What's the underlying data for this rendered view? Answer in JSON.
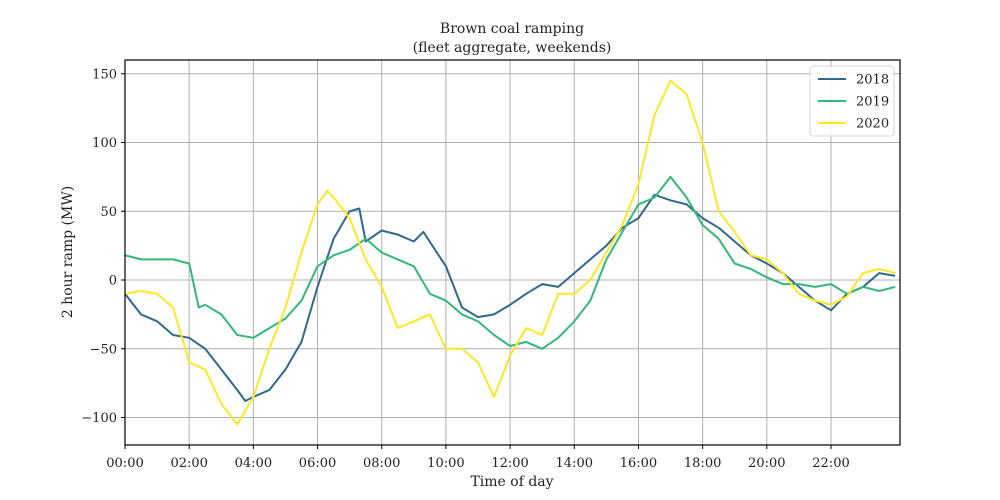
{
  "chart_data": {
    "type": "line",
    "title": "Brown coal ramping",
    "subtitle": "(fleet aggregate, weekends)",
    "xlabel": "Time of day",
    "ylabel": "2 hour ramp (MW)",
    "xlim": [
      0,
      24.15
    ],
    "ylim": [
      -120,
      160
    ],
    "grid": true,
    "legend_position": "top-right",
    "x_tick_labels": [
      "00:00",
      "02:00",
      "04:00",
      "06:00",
      "08:00",
      "10:00",
      "12:00",
      "14:00",
      "16:00",
      "18:00",
      "20:00",
      "22:00"
    ],
    "x_ticks": [
      0,
      2,
      4,
      6,
      8,
      10,
      12,
      14,
      16,
      18,
      20,
      22
    ],
    "y_ticks": [
      -100,
      -50,
      0,
      50,
      100,
      150
    ],
    "y_tick_labels": [
      "−100",
      "−50",
      "0",
      "50",
      "100",
      "150"
    ],
    "x_unit": "hours",
    "series": [
      {
        "name": "2018",
        "color": "#31688e",
        "x": [
          0,
          0.5,
          1,
          1.5,
          2,
          2.5,
          3,
          3.5,
          3.75,
          4,
          4.5,
          5,
          5.5,
          6,
          6.5,
          7,
          7.3,
          7.5,
          8,
          8.5,
          9,
          9.3,
          10,
          10.5,
          11,
          11.5,
          12,
          12.5,
          13,
          13.5,
          14,
          14.5,
          15,
          15.5,
          16,
          16.5,
          17,
          17.5,
          18,
          18.5,
          19,
          19.5,
          20,
          20.5,
          21,
          21.5,
          22,
          22.5,
          23,
          23.5,
          24
        ],
        "values": [
          -10,
          -25,
          -30,
          -40,
          -42,
          -50,
          -65,
          -80,
          -88,
          -85,
          -80,
          -65,
          -45,
          -5,
          30,
          50,
          52,
          28,
          36,
          33,
          28,
          35,
          10,
          -20,
          -27,
          -25,
          -18,
          -10,
          -3,
          -5,
          5,
          15,
          25,
          38,
          45,
          62,
          58,
          55,
          45,
          38,
          28,
          18,
          12,
          5,
          -5,
          -15,
          -22,
          -10,
          -5,
          5,
          3
        ]
      },
      {
        "name": "2019",
        "color": "#35b779",
        "x": [
          0,
          0.5,
          1,
          1.5,
          2,
          2.3,
          2.5,
          3,
          3.5,
          4,
          4.5,
          5,
          5.5,
          6,
          6.5,
          7,
          7.5,
          8,
          8.5,
          9,
          9.5,
          10,
          10.5,
          11,
          11.5,
          12,
          12.5,
          13,
          13.5,
          14,
          14.5,
          15,
          15.5,
          16,
          16.5,
          17,
          17.5,
          18,
          18.5,
          19,
          19.5,
          20,
          20.5,
          21,
          21.5,
          22,
          22.5,
          23,
          23.5,
          24
        ],
        "values": [
          18,
          15,
          15,
          15,
          12,
          -20,
          -18,
          -25,
          -40,
          -42,
          -35,
          -28,
          -15,
          10,
          18,
          22,
          30,
          20,
          15,
          10,
          -10,
          -15,
          -25,
          -30,
          -40,
          -48,
          -45,
          -50,
          -42,
          -30,
          -15,
          15,
          35,
          55,
          60,
          75,
          60,
          40,
          30,
          12,
          8,
          2,
          -3,
          -3,
          -5,
          -3,
          -10,
          -5,
          -8,
          -5
        ]
      },
      {
        "name": "2020",
        "color": "#fde725",
        "x": [
          0,
          0.5,
          1,
          1.5,
          2,
          2.5,
          3,
          3.5,
          4,
          4.5,
          5,
          5.5,
          6,
          6.3,
          6.5,
          7,
          7.5,
          8,
          8.5,
          9,
          9.5,
          10,
          10.5,
          11,
          11.5,
          12,
          12.5,
          13,
          13.5,
          14,
          14.5,
          15,
          15.5,
          16,
          16.5,
          17,
          17.5,
          18,
          18.5,
          19,
          19.5,
          20,
          20.5,
          21,
          21.5,
          22,
          22.5,
          23,
          23.5,
          24
        ],
        "values": [
          -10,
          -8,
          -10,
          -20,
          -60,
          -65,
          -90,
          -105,
          -85,
          -50,
          -20,
          20,
          55,
          65,
          60,
          45,
          15,
          -5,
          -35,
          -30,
          -25,
          -50,
          -50,
          -60,
          -85,
          -55,
          -35,
          -40,
          -10,
          -10,
          0,
          20,
          40,
          70,
          120,
          145,
          135,
          100,
          50,
          35,
          18,
          15,
          5,
          -10,
          -15,
          -18,
          -12,
          5,
          8,
          5
        ]
      }
    ]
  }
}
